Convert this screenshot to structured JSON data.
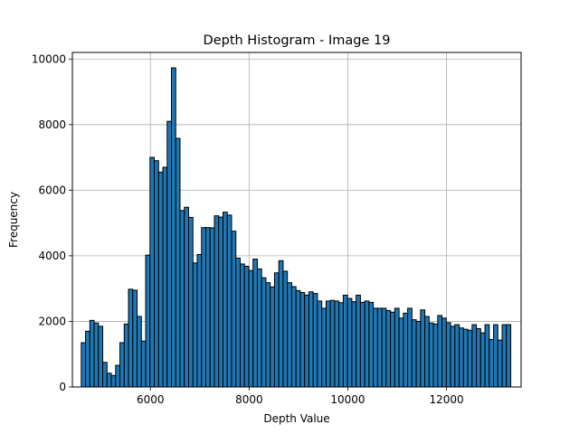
{
  "chart_data": {
    "type": "bar",
    "title": "Depth Histogram - Image 19",
    "xlabel": "Depth Value",
    "ylabel": "Frequency",
    "xlim": [
      4420,
      13510
    ],
    "ylim": [
      0,
      10200
    ],
    "xticks": [
      6000,
      8000,
      10000,
      12000
    ],
    "yticks": [
      0,
      2000,
      4000,
      6000,
      8000,
      10000
    ],
    "grid": true,
    "bar_color": "#1f77b4",
    "edge_color": "#000000",
    "bin_start": 4600,
    "bin_width": 87,
    "values": [
      1350,
      1700,
      2030,
      1950,
      1850,
      750,
      420,
      350,
      660,
      1350,
      1920,
      2980,
      2950,
      2150,
      1400,
      4020,
      7000,
      6900,
      6550,
      6700,
      8100,
      9730,
      7580,
      5380,
      5480,
      5170,
      3780,
      4040,
      4860,
      4860,
      4850,
      5220,
      5180,
      5330,
      5240,
      4750,
      3930,
      3750,
      3680,
      3550,
      3900,
      3600,
      3330,
      3180,
      3050,
      3480,
      3850,
      3530,
      3180,
      3060,
      2940,
      2880,
      2800,
      2900,
      2850,
      2620,
      2400,
      2620,
      2640,
      2620,
      2570,
      2800,
      2700,
      2600,
      2800,
      2580,
      2620,
      2580,
      2400,
      2400,
      2400,
      2330,
      2280,
      2400,
      2100,
      2250,
      2400,
      2050,
      2000,
      2350,
      2150,
      1950,
      1920,
      2180,
      2100,
      1960,
      1850,
      1900,
      1800,
      1760,
      1730,
      1900,
      1780,
      1650,
      1900,
      1450,
      1900,
      1430,
      1900,
      1900
    ]
  }
}
